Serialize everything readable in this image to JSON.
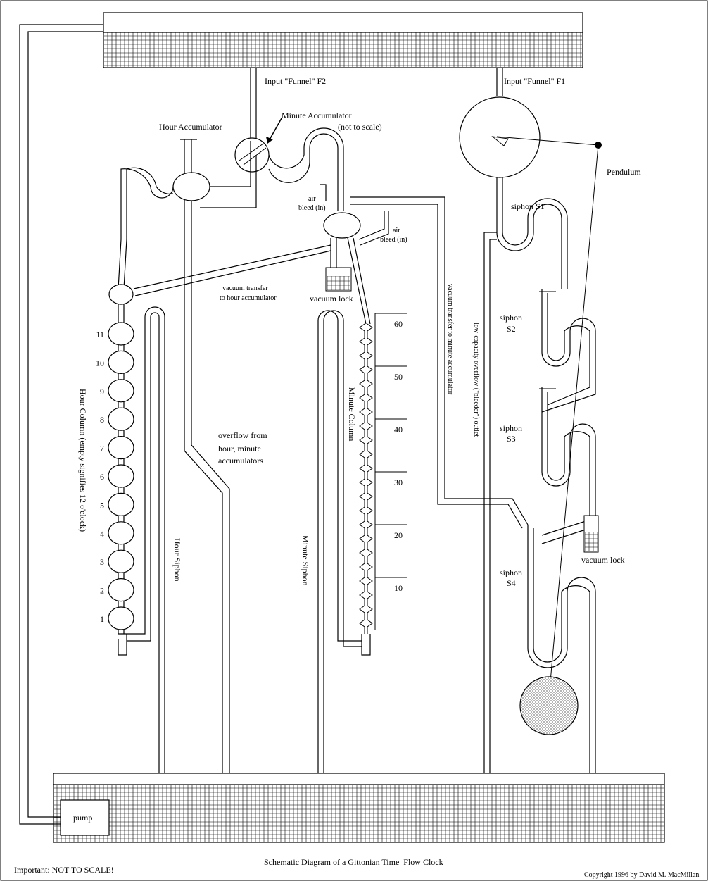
{
  "labels": {
    "input_funnel_f2": "Input \"Funnel\" F2",
    "input_funnel_f1": "Input \"Funnel\" F1",
    "minute_accumulator": "Minute Accumulator",
    "not_to_scale_note": "(not to scale)",
    "hour_accumulator": "Hour Accumulator",
    "pendulum": "Pendulum",
    "siphon_s1": "siphon S1",
    "siphon_s2_a": "siphon",
    "siphon_s2_b": "S2",
    "siphon_s3_a": "siphon",
    "siphon_s3_b": "S3",
    "siphon_s4_a": "siphon",
    "siphon_s4_b": "S4",
    "air_bleed_1a": "air",
    "air_bleed_1b": "bleed (in)",
    "air_bleed_2a": "air",
    "air_bleed_2b": "bleed (in)",
    "vacuum_transfer_hour_a": "vacuum transfer",
    "vacuum_transfer_hour_b": "to hour accumulator",
    "vacuum_lock_1": "vacuum lock",
    "vacuum_lock_2": "vacuum lock",
    "vacuum_transfer_minute": "vacuum transfer to minute accumulator",
    "overflow_outlet": "low-capacity overflow (\"bleeder\") outlet",
    "overflow_a": "overflow from",
    "overflow_b": "hour, minute",
    "overflow_c": "accumulators",
    "hour_column": "Hour Column  (empty signifies 12 o'clock)",
    "hour_siphon": "Hour Siphon",
    "minute_column": "Minute Column",
    "minute_siphon": "Minute Siphon",
    "pump": "pump",
    "important_note": "Important:  NOT TO SCALE!",
    "caption": "Schematic Diagram of a Gittonian Time–Flow Clock",
    "copyright": "Copyright 1996 by David M. MacMillan"
  },
  "hour_numbers": [
    "11",
    "10",
    "9",
    "8",
    "7",
    "6",
    "5",
    "4",
    "3",
    "2",
    "1"
  ],
  "minute_ticks": [
    "60",
    "50",
    "40",
    "30",
    "20",
    "10"
  ],
  "colors": {
    "line": "#000000",
    "background": "#ffffff",
    "water": "#ffffff"
  }
}
